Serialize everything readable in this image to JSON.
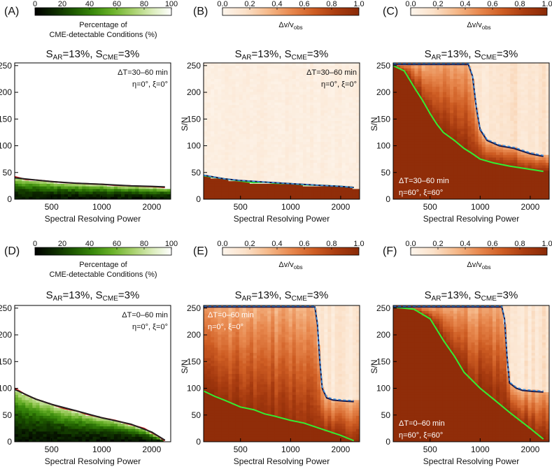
{
  "colormaps": {
    "green": [
      "#000000",
      "#0d2a00",
      "#1e5a00",
      "#3a8a0c",
      "#6bb22a",
      "#a6d06a",
      "#d9ecb8",
      "#ffffff"
    ],
    "orange": [
      "#fdf5ec",
      "#fbe1c9",
      "#f5b98a",
      "#e8894f",
      "#cf5e24",
      "#a93c10",
      "#8a2a07"
    ]
  },
  "colorbars": {
    "detect": {
      "ticks": [
        "0",
        "20",
        "40",
        "60",
        "80",
        "100"
      ],
      "label_line1": "Percentage of",
      "label_line2": "CME-detectable Conditions (%)"
    },
    "dv": {
      "ticks": [
        "0.0",
        "0.2",
        "0.4",
        "0.6",
        "0.8",
        "1.0"
      ],
      "label": "Δv/v",
      "label_sub": "obs"
    }
  },
  "axes": {
    "xlabel": "Spectral Resolving Power",
    "ylabel": "S/N",
    "xticks": [
      "500",
      "1000",
      "2000"
    ],
    "yticks": [
      "0",
      "50",
      "100",
      "150",
      "200",
      "250"
    ],
    "xlim": [
      300,
      2600
    ],
    "ylim": [
      0,
      255
    ],
    "xscale": "log"
  },
  "panels": [
    {
      "letter": "(A)",
      "title_s": "S",
      "title_sub1": "AR",
      "title_mid": "=13%, S",
      "title_sub2": "CME",
      "title_end": "=3%",
      "colormap": "green",
      "colorbar": "detect",
      "mode": "detect",
      "threshold_start": 40,
      "threshold_end": 22,
      "ann1": "ΔT=30–60 min",
      "ann2": "η=0°, ξ=0°",
      "ann_pos": "top-right",
      "chart_data": {
        "type": "heatmap",
        "series": [
          {
            "name": "",
            "color": "#d41616",
            "x": [
              300,
              350,
              400,
              500,
              600,
              700,
              800,
              1000,
              1200,
              1500,
              1800,
              2200,
              2400
            ],
            "y": [
              42,
              37,
              36,
              33,
              31,
              30,
              29,
              28,
              26,
              25,
              24,
              23,
              22
            ]
          },
          {
            "name": "",
            "color": "#222222",
            "x": [
              300,
              400,
              500,
              700,
              1000,
              1500,
              2000,
              2400
            ],
            "y": [
              40,
              36,
              33,
              30,
              28,
              25,
              24,
              23
            ]
          }
        ]
      }
    },
    {
      "letter": "(B)",
      "title_s": "S",
      "title_sub1": "AR",
      "title_mid": "=13%, S",
      "title_sub2": "CME",
      "title_end": "=3%",
      "colormap": "orange",
      "colorbar": "dv",
      "mode": "dv_low",
      "threshold_start": 45,
      "threshold_end": 22,
      "ann1": "ΔT=30–60 min",
      "ann2": "η=0°, ξ=0°",
      "ann_pos": "top-right",
      "chart_data": {
        "type": "heatmap",
        "series": [
          {
            "name": "",
            "color": "#33ee33",
            "x": [
              300,
              400,
              500,
              600,
              700,
              800,
              1000,
              1200,
              1500,
              2000,
              2400
            ],
            "y": [
              44,
              38,
              34,
              31,
              32,
              30,
              29,
              27,
              26,
              24,
              22
            ]
          },
          {
            "name": "",
            "color": "#1a1a4a",
            "x": [
              300,
              400,
              500,
              700,
              1000,
              1500,
              2000,
              2400
            ],
            "y": [
              45,
              38,
              35,
              32,
              29,
              26,
              24,
              22
            ]
          },
          {
            "name": "",
            "color": "#3b8fe0",
            "x": [
              300,
              400,
              500,
              700,
              1000,
              1500,
              2000,
              2400
            ],
            "y": [
              45,
              38,
              35,
              32,
              29,
              26,
              24,
              22
            ]
          }
        ]
      }
    },
    {
      "letter": "(C)",
      "title_s": "S",
      "title_sub1": "AR",
      "title_mid": "=13%, S",
      "title_sub2": "CME",
      "title_end": "=3%",
      "colormap": "orange",
      "colorbar": "dv",
      "mode": "dv_high",
      "ann1": "ΔT=30–60 min",
      "ann2": "η=60°, ξ=60°",
      "ann_pos": "bottom-left",
      "chart_data": {
        "type": "heatmap",
        "series": [
          {
            "name": "",
            "color": "#33ee33",
            "x": [
              300,
              350,
              400,
              450,
              500,
              550,
              600,
              700,
              800,
              900,
              1000,
              1200,
              1500,
              2000,
              2400
            ],
            "y": [
              250,
              240,
              210,
              185,
              160,
              140,
              125,
              110,
              95,
              85,
              75,
              68,
              62,
              56,
              52
            ]
          },
          {
            "name": "",
            "color": "#1a1a4a",
            "x": [
              300,
              500,
              700,
              850,
              900,
              950,
              1000,
              1100,
              1300,
              1600,
              2000,
              2400
            ],
            "y": [
              252,
              252,
              252,
              252,
              230,
              170,
              130,
              110,
              100,
              95,
              85,
              80
            ]
          },
          {
            "name": "",
            "color": "#3b8fe0",
            "x": [
              300,
              500,
              700,
              850,
              900,
              950,
              1000,
              1100,
              1300,
              1600,
              2000,
              2400
            ],
            "y": [
              254,
              254,
              254,
              254,
              232,
              172,
              132,
              112,
              102,
              97,
              87,
              82
            ]
          }
        ]
      }
    },
    {
      "letter": "(D)",
      "title_s": "S",
      "title_sub1": "AR",
      "title_mid": "=13%, S",
      "title_sub2": "CME",
      "title_end": "=3%",
      "colormap": "green",
      "colorbar": "detect",
      "mode": "detect",
      "threshold_start": 100,
      "threshold_end": 0,
      "ann1": "ΔT=0–60 min",
      "ann2": "η=0°, ξ=0°",
      "ann_pos": "top-right",
      "chart_data": {
        "type": "heatmap",
        "series": [
          {
            "name": "",
            "color": "#d41616",
            "x": [
              300,
              350,
              400,
              500,
              600,
              700,
              800,
              1000,
              1200,
              1500,
              1800,
              2200,
              2400
            ],
            "y": [
              100,
              88,
              80,
              70,
              62,
              58,
              52,
              45,
              40,
              32,
              25,
              10,
              2
            ]
          },
          {
            "name": "",
            "color": "#222222",
            "x": [
              300,
              400,
              500,
              700,
              1000,
              1500,
              2000,
              2400
            ],
            "y": [
              98,
              80,
              70,
              58,
              45,
              33,
              18,
              3
            ]
          }
        ]
      }
    },
    {
      "letter": "(E)",
      "title_s": "S",
      "title_sub1": "AR",
      "title_mid": "=13%, S",
      "title_sub2": "CME",
      "title_end": "=3%",
      "colormap": "orange",
      "colorbar": "dv",
      "mode": "dv_high",
      "ann1": "ΔT=0–60 min",
      "ann2": "η=0°, ξ=0°",
      "ann_pos": "top-left",
      "chart_data": {
        "type": "heatmap",
        "series": [
          {
            "name": "",
            "color": "#33ee33",
            "x": [
              300,
              350,
              400,
              500,
              600,
              700,
              800,
              1000,
              1200,
              1500,
              2000,
              2400
            ],
            "y": [
              95,
              85,
              78,
              65,
              60,
              52,
              48,
              40,
              35,
              25,
              12,
              2
            ]
          },
          {
            "name": "",
            "color": "#1a1a4a",
            "x": [
              300,
              700,
              1200,
              1400,
              1450,
              1500,
              1550,
              1650,
              1800,
              2100,
              2400
            ],
            "y": [
              252,
              252,
              252,
              252,
              220,
              150,
              100,
              82,
              78,
              76,
              75
            ]
          },
          {
            "name": "",
            "color": "#3b8fe0",
            "x": [
              300,
              700,
              1200,
              1400,
              1450,
              1500,
              1550,
              1650,
              1800,
              2100,
              2400
            ],
            "y": [
              254,
              254,
              254,
              254,
              222,
              152,
              102,
              84,
              80,
              78,
              77
            ]
          }
        ]
      }
    },
    {
      "letter": "(F)",
      "title_s": "S",
      "title_sub1": "AR",
      "title_mid": "=13%, S",
      "title_sub2": "CME",
      "title_end": "=3%",
      "colormap": "orange",
      "colorbar": "dv",
      "mode": "dv_high",
      "ann1": "ΔT=0–60 min",
      "ann2": "η=60°, ξ=60°",
      "ann_pos": "bottom-left",
      "chart_data": {
        "type": "heatmap",
        "series": [
          {
            "name": "",
            "color": "#33ee33",
            "x": [
              300,
              400,
              500,
              600,
              700,
              800,
              1000,
              1200,
              1500,
              2000,
              2400
            ],
            "y": [
              252,
              248,
              230,
              190,
              160,
              130,
              100,
              80,
              55,
              25,
              5
            ]
          },
          {
            "name": "",
            "color": "#1a1a4a",
            "x": [
              300,
              700,
              1200,
              1350,
              1400,
              1450,
              1500,
              1650,
              1800,
              2100,
              2400
            ],
            "y": [
              252,
              252,
              252,
              252,
              230,
              160,
              110,
              100,
              96,
              94,
              93
            ]
          },
          {
            "name": "",
            "color": "#3b8fe0",
            "x": [
              300,
              700,
              1200,
              1350,
              1400,
              1450,
              1500,
              1650,
              1800,
              2100,
              2400
            ],
            "y": [
              254,
              254,
              254,
              254,
              232,
              162,
              112,
              102,
              98,
              96,
              95
            ]
          }
        ]
      }
    }
  ]
}
